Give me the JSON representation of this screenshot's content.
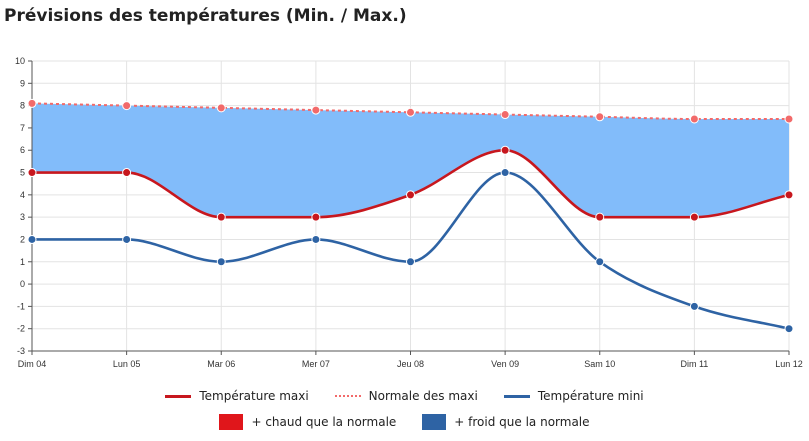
{
  "title": "Prévisions des températures (Min. / Max.)",
  "colors": {
    "max": "#c7171e",
    "normal": "#f26a6a",
    "min": "#2e63a4",
    "warm": "#e0161b",
    "cold": "#2e63a4",
    "cold_fill": "#82bcfa",
    "grid": "#e3e3e3",
    "axis": "#555555"
  },
  "legend": {
    "max": "Température maxi",
    "normal": "Normale des maxi",
    "min": "Température mini",
    "warm": "+ chaud que la normale",
    "cold": "+ froid que la normale"
  },
  "chart_data": {
    "type": "line",
    "title": "Prévisions des températures (Min. / Max.)",
    "categories": [
      "Dim 04",
      "Lun 05",
      "Mar 06",
      "Mer 07",
      "Jeu 08",
      "Ven 09",
      "Sam 10",
      "Dim 11",
      "Lun 12"
    ],
    "ylim": [
      -3,
      10
    ],
    "yticks": [
      10,
      9,
      8,
      7,
      6,
      5,
      4,
      3,
      2,
      1,
      0,
      -1,
      -2,
      -3
    ],
    "grid": true,
    "legend_position": "bottom",
    "series": [
      {
        "name": "Température maxi",
        "style": "solid",
        "values": [
          5,
          5,
          3,
          3,
          4,
          6,
          3,
          3,
          4
        ]
      },
      {
        "name": "Normale des maxi",
        "style": "dotted",
        "values": [
          8.1,
          8.0,
          7.9,
          7.8,
          7.7,
          7.6,
          7.5,
          7.4,
          7.4
        ]
      },
      {
        "name": "Température mini",
        "style": "solid",
        "values": [
          2,
          2,
          1,
          2,
          1,
          5,
          1,
          -1,
          -2
        ]
      }
    ]
  }
}
